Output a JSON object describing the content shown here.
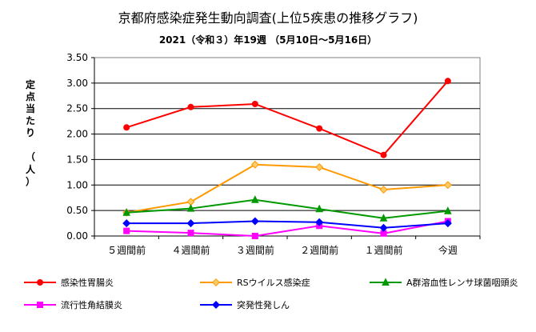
{
  "chart_data": {
    "type": "line",
    "title": "京都府感染症発生動向調査(上位5疾患の推移グラフ)",
    "subtitle": "2021（令和３）年19週 （5月10日～5月16日）",
    "ylabel": "定点当たり　（人）",
    "xlabel": "",
    "categories": [
      "５週間前",
      "４週間前",
      "３週間前",
      "２週間前",
      "１週間前",
      "今週"
    ],
    "ylim": [
      0,
      3.5
    ],
    "yticks": [
      "0.00",
      "0.50",
      "1.00",
      "1.50",
      "2.00",
      "2.50",
      "3.00",
      "3.50"
    ],
    "grid": "horizontal",
    "legend_position": "bottom",
    "series": [
      {
        "name": "感染性胃腸炎",
        "color": "#ff0000",
        "marker": "circle",
        "values": [
          2.13,
          2.53,
          2.59,
          2.11,
          1.59,
          3.04
        ]
      },
      {
        "name": "RSウイルス感染症",
        "color": "#ff9900",
        "marker": "diamond",
        "values": [
          0.46,
          0.67,
          1.4,
          1.35,
          0.91,
          1.0
        ]
      },
      {
        "name": "A群溶血性レンサ球菌咽頭炎",
        "color": "#009900",
        "marker": "triangle",
        "values": [
          0.46,
          0.54,
          0.71,
          0.53,
          0.35,
          0.49
        ]
      },
      {
        "name": "流行性角結膜炎",
        "color": "#ff00ff",
        "marker": "square",
        "values": [
          0.1,
          0.06,
          0.0,
          0.2,
          0.05,
          0.29
        ]
      },
      {
        "name": "突発性発しん",
        "color": "#0000ff",
        "marker": "diamond",
        "values": [
          0.25,
          0.25,
          0.29,
          0.27,
          0.16,
          0.25
        ]
      }
    ]
  }
}
